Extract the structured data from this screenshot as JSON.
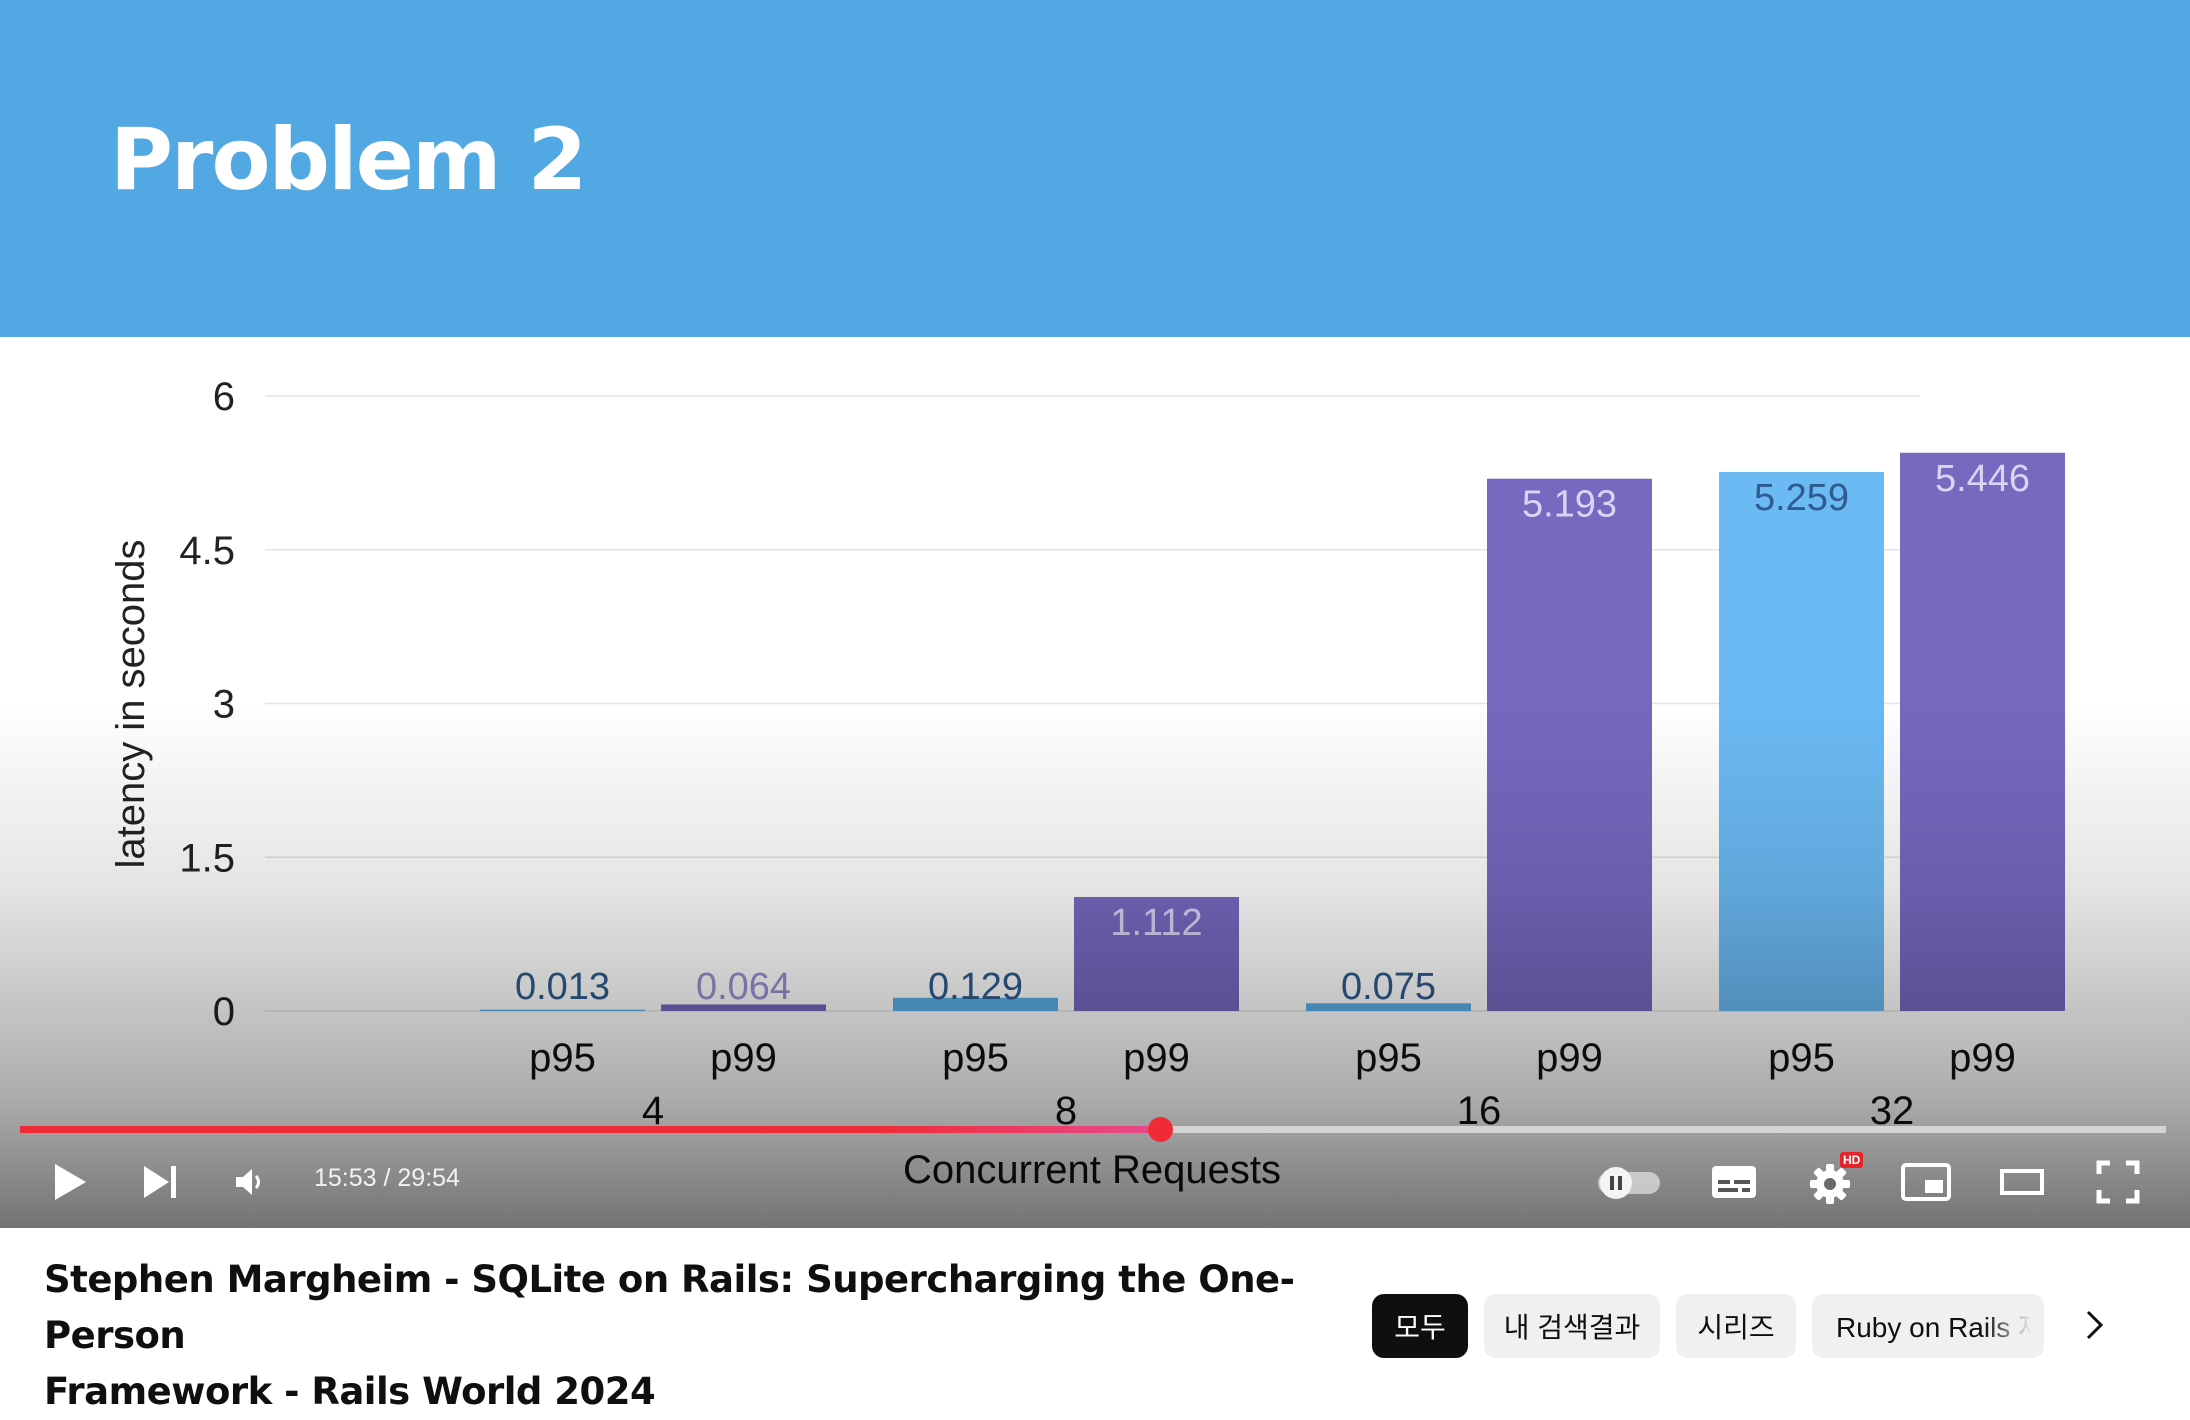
{
  "slide": {
    "title": "Problem 2",
    "header_color": "#52a8e2"
  },
  "chart_data": {
    "type": "bar",
    "ylabel": "latency in seconds",
    "xlabel": "Concurrent Requests",
    "ylim": [
      0,
      6
    ],
    "yticks": [
      "0",
      "1.5",
      "3",
      "4.5",
      "6"
    ],
    "ytick_values": [
      0,
      1.5,
      3,
      4.5,
      6
    ],
    "grid": true,
    "groups": [
      {
        "label": "4",
        "bars": [
          {
            "sub": "p95",
            "value": 0.013,
            "label": "0.013",
            "color": "#5ab0e8"
          },
          {
            "sub": "p99",
            "value": 0.064,
            "label": "0.064",
            "color": "#7768c0"
          }
        ]
      },
      {
        "label": "8",
        "bars": [
          {
            "sub": "p95",
            "value": 0.129,
            "label": "0.129",
            "color": "#5ab0e8"
          },
          {
            "sub": "p99",
            "value": 1.112,
            "label": "1.112",
            "color": "#7768c0"
          }
        ]
      },
      {
        "label": "16",
        "bars": [
          {
            "sub": "p95",
            "value": 0.075,
            "label": "0.075",
            "color": "#5ab0e8"
          },
          {
            "sub": "p99",
            "value": 5.193,
            "label": "5.193",
            "color": "#7768c0"
          }
        ]
      },
      {
        "label": "32",
        "bars": [
          {
            "sub": "p95",
            "value": 5.259,
            "label": "5.259",
            "color": "#6bbaf4"
          },
          {
            "sub": "p99",
            "value": 5.446,
            "label": "5.446",
            "color": "#7768c0"
          }
        ]
      }
    ]
  },
  "player": {
    "time_display": "15:53 / 29:54",
    "progress": 0.531,
    "progress_color": "#ef2c36",
    "hd_badge": "HD",
    "icons": {
      "play": "play-icon",
      "next": "next-icon",
      "volume": "volume-icon",
      "autoplay": "autoplay-toggle-icon",
      "subtitles": "subtitles-icon",
      "settings": "gear-icon",
      "miniplayer": "miniplayer-icon",
      "theater": "theater-mode-icon",
      "fullscreen": "fullscreen-icon"
    }
  },
  "video": {
    "title_line1": "Stephen Margheim - SQLite on Rails: Supercharging the One-Person",
    "title_line2": "Framework - Rails World 2024"
  },
  "chips": [
    {
      "label": "모두",
      "active": true
    },
    {
      "label": "내 검색결과",
      "active": false
    },
    {
      "label": "시리즈",
      "active": false
    },
    {
      "label": "Ruby on Rails 제",
      "active": false
    }
  ]
}
